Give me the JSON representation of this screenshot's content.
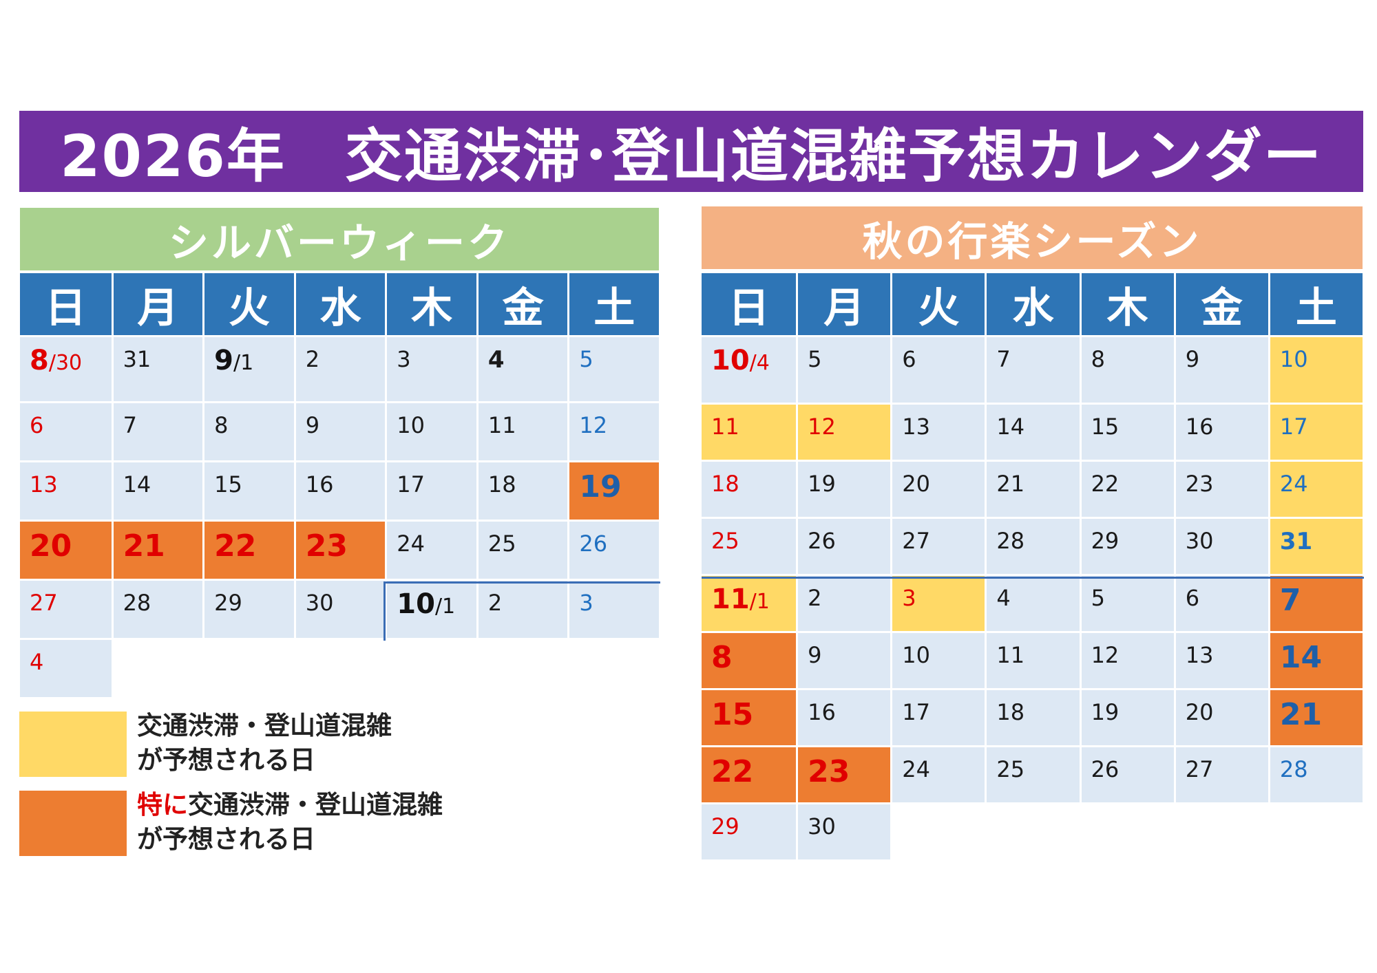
{
  "title": "2026年　交通渋滞･登山道混雑予想カレンダー",
  "colors": {
    "banner": "#7030a0",
    "silver_header": "#a9d18e",
    "autumn_header": "#f4b183",
    "dow_header": "#2e75b6",
    "cell": "#dde8f4",
    "congestion": "#ffd966",
    "heavy_congestion": "#ed7d31"
  },
  "weekdays": [
    "日",
    "月",
    "火",
    "水",
    "木",
    "金",
    "土"
  ],
  "silver_week": {
    "header": "シルバーウィーク",
    "weeks": [
      [
        {
          "main": "8",
          "sub": "/30",
          "style": "sun big-date"
        },
        {
          "main": "31"
        },
        {
          "main": "9",
          "sub": "/1",
          "style": "black big-date"
        },
        {
          "main": "2"
        },
        {
          "main": "3"
        },
        {
          "main": "4",
          "style": "black bold"
        },
        {
          "main": "5",
          "style": "sat"
        }
      ],
      [
        {
          "main": "6",
          "style": "sun"
        },
        {
          "main": "7"
        },
        {
          "main": "8"
        },
        {
          "main": "9"
        },
        {
          "main": "10"
        },
        {
          "main": "11"
        },
        {
          "main": "12",
          "style": "sat"
        }
      ],
      [
        {
          "main": "13",
          "style": "sun"
        },
        {
          "main": "14"
        },
        {
          "main": "15"
        },
        {
          "main": "16"
        },
        {
          "main": "17"
        },
        {
          "main": "18"
        },
        {
          "main": "19",
          "style": "sat big",
          "hl": "heavy"
        }
      ],
      [
        {
          "main": "20",
          "style": "sun big",
          "hl": "heavy"
        },
        {
          "main": "21",
          "style": "sun big",
          "hl": "heavy"
        },
        {
          "main": "22",
          "style": "sun big",
          "hl": "heavy"
        },
        {
          "main": "23",
          "style": "sun big",
          "hl": "heavy"
        },
        {
          "main": "24"
        },
        {
          "main": "25"
        },
        {
          "main": "26",
          "style": "sat"
        }
      ],
      [
        {
          "main": "27",
          "style": "sun"
        },
        {
          "main": "28"
        },
        {
          "main": "29"
        },
        {
          "main": "30"
        },
        {
          "main": "10",
          "sub": "/1",
          "style": "black big-date"
        },
        {
          "main": "2"
        },
        {
          "main": "3",
          "style": "sat"
        }
      ],
      [
        {
          "main": "4",
          "style": "sun"
        }
      ]
    ]
  },
  "autumn_season": {
    "header": "秋の行楽シーズン",
    "weeks": [
      [
        {
          "main": "10",
          "sub": "/4",
          "style": "sun big-date"
        },
        {
          "main": "5"
        },
        {
          "main": "6"
        },
        {
          "main": "7"
        },
        {
          "main": "8"
        },
        {
          "main": "9"
        },
        {
          "main": "10",
          "style": "sat",
          "hl": "yellow"
        }
      ],
      [
        {
          "main": "11",
          "style": "sun",
          "hl": "yellow"
        },
        {
          "main": "12",
          "style": "sun",
          "hl": "yellow"
        },
        {
          "main": "13"
        },
        {
          "main": "14"
        },
        {
          "main": "15"
        },
        {
          "main": "16"
        },
        {
          "main": "17",
          "style": "sat",
          "hl": "yellow"
        }
      ],
      [
        {
          "main": "18",
          "style": "sun"
        },
        {
          "main": "19"
        },
        {
          "main": "20"
        },
        {
          "main": "21"
        },
        {
          "main": "22"
        },
        {
          "main": "23"
        },
        {
          "main": "24",
          "style": "sat",
          "hl": "yellow"
        }
      ],
      [
        {
          "main": "25",
          "style": "sun"
        },
        {
          "main": "26"
        },
        {
          "main": "27"
        },
        {
          "main": "28"
        },
        {
          "main": "29"
        },
        {
          "main": "30"
        },
        {
          "main": "31",
          "style": "sat bold",
          "hl": "yellow"
        }
      ],
      [
        {
          "main": "11",
          "sub": "/1",
          "style": "sun big-date",
          "hl": "yellow"
        },
        {
          "main": "2"
        },
        {
          "main": "3",
          "style": "sun",
          "hl": "yellow"
        },
        {
          "main": "4"
        },
        {
          "main": "5"
        },
        {
          "main": "6"
        },
        {
          "main": "7",
          "style": "sat big",
          "hl": "heavy"
        }
      ],
      [
        {
          "main": "8",
          "style": "sun big",
          "hl": "heavy"
        },
        {
          "main": "9"
        },
        {
          "main": "10"
        },
        {
          "main": "11"
        },
        {
          "main": "12"
        },
        {
          "main": "13"
        },
        {
          "main": "14",
          "style": "sat big",
          "hl": "heavy"
        }
      ],
      [
        {
          "main": "15",
          "style": "sun big",
          "hl": "heavy"
        },
        {
          "main": "16"
        },
        {
          "main": "17"
        },
        {
          "main": "18"
        },
        {
          "main": "19"
        },
        {
          "main": "20"
        },
        {
          "main": "21",
          "style": "sat big",
          "hl": "heavy"
        }
      ],
      [
        {
          "main": "22",
          "style": "sun big",
          "hl": "heavy"
        },
        {
          "main": "23",
          "style": "sun big",
          "hl": "heavy"
        },
        {
          "main": "24"
        },
        {
          "main": "25"
        },
        {
          "main": "26"
        },
        {
          "main": "27"
        },
        {
          "main": "28",
          "style": "sat"
        }
      ],
      [
        {
          "main": "29",
          "style": "sun"
        },
        {
          "main": "30"
        }
      ]
    ]
  },
  "legend": {
    "yellow": {
      "line1": "交通渋滞・登山道混雑",
      "line2": "が予想される日"
    },
    "orange": {
      "prefix": "特に",
      "line1": "交通渋滞・登山道混雑",
      "line2": "が予想される日"
    }
  }
}
